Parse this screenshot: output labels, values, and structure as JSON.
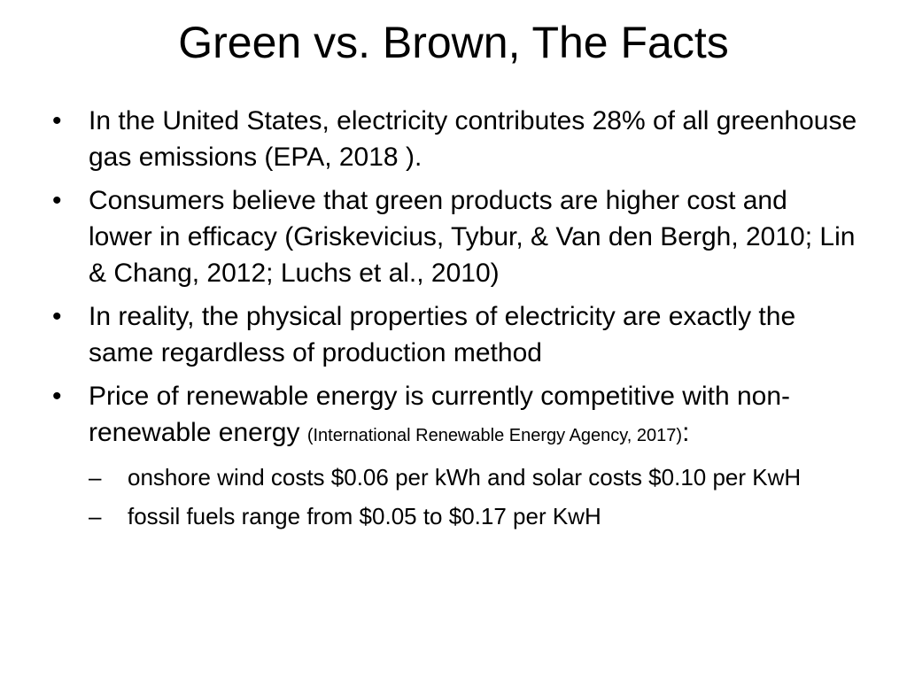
{
  "slide": {
    "title": "Green vs. Brown, The Facts",
    "bullet_symbol": "•",
    "dash_symbol": "–",
    "bullets": [
      {
        "text": "In the United States, electricity contributes 28% of all greenhouse gas emissions (EPA, 2018 )."
      },
      {
        "text": "Consumers believe that green products are higher cost and lower in efficacy (Griskevicius, Tybur, & Van den Bergh, 2010; Lin & Chang, 2012; Luchs et al., 2010)"
      },
      {
        "text": "In reality, the physical properties of electricity are exactly the same regardless of production method"
      },
      {
        "text": "Price of renewable energy is currently competitive with non-renewable energy ",
        "citation": "(International Renewable Energy Agency, 2017)",
        "suffix": ":",
        "sub_bullets": [
          "onshore wind costs  $0.06 per kWh and solar costs $0.10 per KwH",
          "fossil fuels range from $0.05 to $0.17 per KwH"
        ]
      }
    ]
  }
}
